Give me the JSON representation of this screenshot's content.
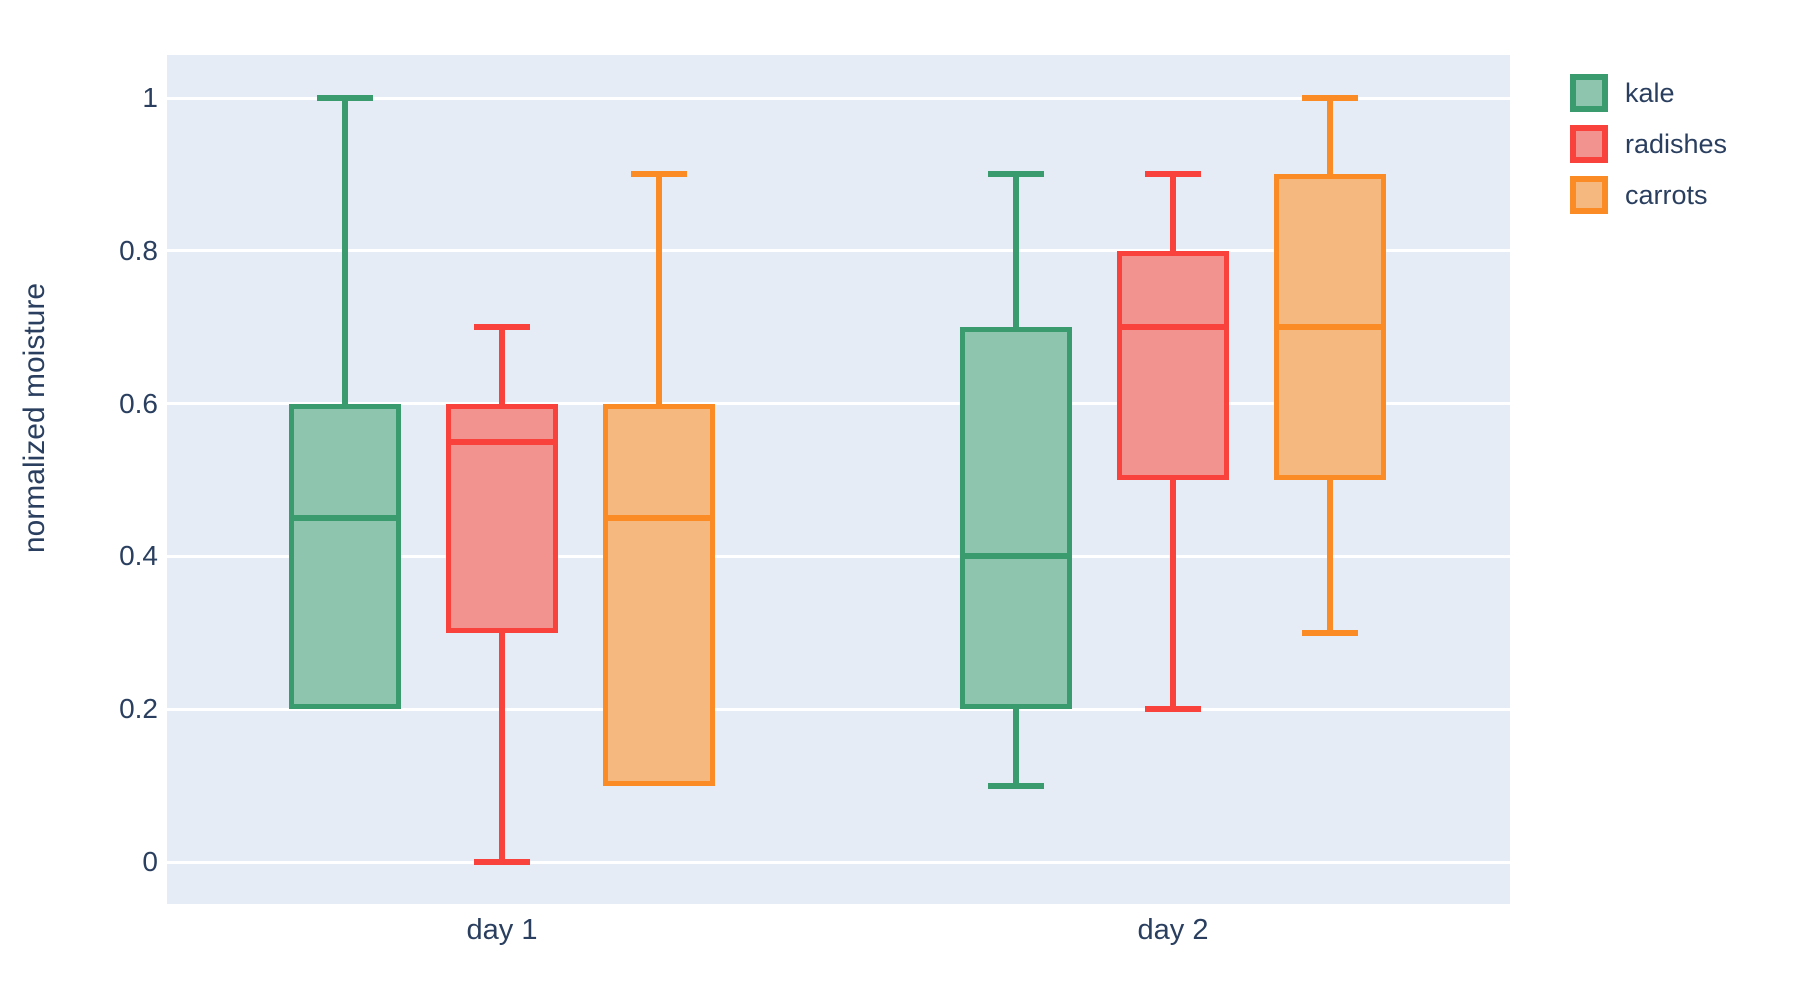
{
  "chart_data": {
    "type": "box",
    "title": "",
    "xlabel": "",
    "ylabel": "normalized moisture",
    "categories": [
      "day 1",
      "day 2"
    ],
    "yticks": [
      0,
      0.2,
      0.4,
      0.6,
      0.8,
      1
    ],
    "ylim": [
      -0.055,
      1.056
    ],
    "grid": true,
    "legend_position": "top-right-outside",
    "plot_bg_color": "#e5ecf6",
    "grid_color": "#ffffff",
    "text_color": "#2a3f5f",
    "series": [
      {
        "name": "kale",
        "color": "#3a9c6e",
        "fill": "#8ec5ae",
        "boxes": [
          {
            "category": "day 1",
            "min": 0.2,
            "q1": 0.2,
            "median": 0.45,
            "q3": 0.6,
            "max": 1.0
          },
          {
            "category": "day 2",
            "min": 0.1,
            "q1": 0.2,
            "median": 0.4,
            "q3": 0.7,
            "max": 0.9
          }
        ]
      },
      {
        "name": "radishes",
        "color": "#f8423b",
        "fill": "#f2938f",
        "boxes": [
          {
            "category": "day 1",
            "min": 0.0,
            "q1": 0.3,
            "median": 0.55,
            "q3": 0.6,
            "max": 0.7
          },
          {
            "category": "day 2",
            "min": 0.2,
            "q1": 0.5,
            "median": 0.7,
            "q3": 0.8,
            "max": 0.9
          }
        ]
      },
      {
        "name": "carrots",
        "color": "#fb8b24",
        "fill": "#f5b97f",
        "boxes": [
          {
            "category": "day 1",
            "min": 0.1,
            "q1": 0.1,
            "median": 0.45,
            "q3": 0.6,
            "max": 0.9
          },
          {
            "category": "day 2",
            "min": 0.3,
            "q1": 0.5,
            "median": 0.7,
            "q3": 0.9,
            "max": 1.0
          }
        ]
      }
    ]
  }
}
